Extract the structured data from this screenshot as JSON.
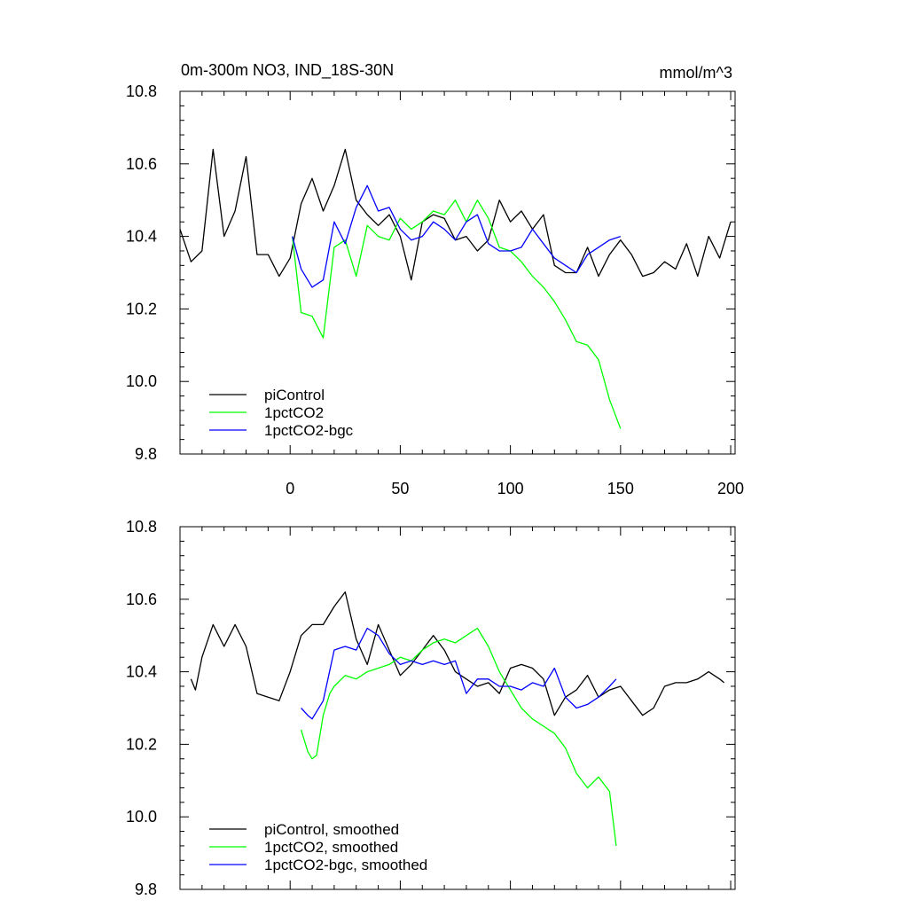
{
  "chart_data": [
    {
      "type": "line",
      "title": "0m-300m NO3, IND_18S-30N",
      "units": "mmol/m^3",
      "xlim": [
        -50,
        202
      ],
      "ylim": [
        9.8,
        10.8
      ],
      "xticks": [
        0,
        50,
        100,
        150,
        200
      ],
      "yticks": [
        9.8,
        10.0,
        10.2,
        10.4,
        10.6,
        10.8
      ],
      "ytick_labels": [
        "9.8",
        "10.0",
        "10.2",
        "10.4",
        "10.6",
        "10.8"
      ],
      "legend_position": "bottom-left",
      "series": [
        {
          "name": "piControl",
          "color": "#000000",
          "x": [
            -50,
            -45,
            -40,
            -35,
            -30,
            -25,
            -20,
            -15,
            -10,
            -5,
            0,
            5,
            10,
            15,
            20,
            25,
            30,
            35,
            40,
            45,
            50,
            55,
            60,
            65,
            70,
            75,
            80,
            85,
            90,
            95,
            100,
            105,
            110,
            115,
            120,
            125,
            130,
            135,
            140,
            145,
            150,
            155,
            160,
            165,
            170,
            175,
            180,
            185,
            190,
            195,
            200
          ],
          "y": [
            10.42,
            10.33,
            10.36,
            10.64,
            10.4,
            10.47,
            10.62,
            10.35,
            10.35,
            10.29,
            10.34,
            10.49,
            10.56,
            10.47,
            10.54,
            10.64,
            10.5,
            10.46,
            10.43,
            10.46,
            10.4,
            10.28,
            10.44,
            10.46,
            10.45,
            10.39,
            10.4,
            10.36,
            10.39,
            10.5,
            10.44,
            10.47,
            10.42,
            10.46,
            10.32,
            10.3,
            10.3,
            10.37,
            10.29,
            10.35,
            10.39,
            10.35,
            10.29,
            10.3,
            10.33,
            10.31,
            10.38,
            10.29,
            10.4,
            10.34,
            10.44
          ]
        },
        {
          "name": "1pctCO2",
          "color": "#00ff00",
          "x": [
            1,
            5,
            10,
            15,
            20,
            25,
            30,
            35,
            40,
            45,
            50,
            55,
            60,
            65,
            70,
            75,
            80,
            85,
            90,
            95,
            100,
            105,
            110,
            115,
            120,
            125,
            130,
            135,
            140,
            145,
            150
          ],
          "y": [
            10.4,
            10.19,
            10.18,
            10.12,
            10.37,
            10.39,
            10.29,
            10.43,
            10.4,
            10.39,
            10.45,
            10.42,
            10.44,
            10.47,
            10.46,
            10.5,
            10.44,
            10.5,
            10.45,
            10.37,
            10.36,
            10.33,
            10.29,
            10.26,
            10.22,
            10.17,
            10.11,
            10.1,
            10.06,
            9.95,
            9.87
          ]
        },
        {
          "name": "1pctCO2-bgc",
          "color": "#0000ff",
          "x": [
            1,
            5,
            10,
            15,
            20,
            25,
            30,
            35,
            40,
            45,
            50,
            55,
            60,
            65,
            70,
            75,
            80,
            85,
            90,
            95,
            100,
            105,
            110,
            115,
            120,
            125,
            130,
            135,
            140,
            145,
            150
          ],
          "y": [
            10.4,
            10.31,
            10.26,
            10.28,
            10.44,
            10.38,
            10.48,
            10.54,
            10.47,
            10.48,
            10.42,
            10.39,
            10.4,
            10.44,
            10.42,
            10.39,
            10.44,
            10.46,
            10.38,
            10.36,
            10.36,
            10.37,
            10.42,
            10.38,
            10.34,
            10.32,
            10.3,
            10.35,
            10.37,
            10.39,
            10.4
          ]
        }
      ]
    },
    {
      "type": "line",
      "xlim": [
        -50,
        202
      ],
      "ylim": [
        9.8,
        10.8
      ],
      "xticks": [
        0,
        50,
        100,
        150,
        200
      ],
      "yticks": [
        9.8,
        10.0,
        10.2,
        10.4,
        10.6,
        10.8
      ],
      "ytick_labels": [
        "9.8",
        "10.0",
        "10.2",
        "10.4",
        "10.6",
        "10.8"
      ],
      "legend_position": "bottom-left",
      "series": [
        {
          "name": "piControl, smoothed",
          "color": "#000000",
          "x": [
            -45,
            -43,
            -40,
            -35,
            -30,
            -25,
            -20,
            -15,
            -10,
            -5,
            0,
            5,
            10,
            15,
            20,
            25,
            30,
            35,
            40,
            45,
            50,
            55,
            60,
            65,
            70,
            75,
            80,
            85,
            90,
            95,
            100,
            105,
            110,
            115,
            120,
            125,
            130,
            135,
            140,
            145,
            150,
            155,
            160,
            165,
            170,
            175,
            180,
            185,
            190,
            195,
            197
          ],
          "y": [
            10.38,
            10.35,
            10.44,
            10.53,
            10.47,
            10.53,
            10.47,
            10.34,
            10.33,
            10.32,
            10.4,
            10.5,
            10.53,
            10.53,
            10.58,
            10.62,
            10.49,
            10.42,
            10.53,
            10.46,
            10.39,
            10.42,
            10.46,
            10.5,
            10.46,
            10.4,
            10.38,
            10.36,
            10.37,
            10.34,
            10.41,
            10.42,
            10.41,
            10.38,
            10.28,
            10.33,
            10.35,
            10.39,
            10.33,
            10.35,
            10.36,
            10.32,
            10.28,
            10.3,
            10.36,
            10.37,
            10.37,
            10.38,
            10.4,
            10.38,
            10.37
          ]
        },
        {
          "name": "1pctCO2, smoothed",
          "color": "#00ff00",
          "x": [
            5,
            8,
            10,
            12,
            15,
            18,
            20,
            25,
            30,
            35,
            40,
            45,
            50,
            55,
            60,
            65,
            70,
            75,
            80,
            85,
            90,
            95,
            100,
            105,
            110,
            115,
            120,
            125,
            130,
            135,
            140,
            145,
            148
          ],
          "y": [
            10.24,
            10.18,
            10.16,
            10.17,
            10.28,
            10.34,
            10.36,
            10.39,
            10.38,
            10.4,
            10.41,
            10.42,
            10.44,
            10.43,
            10.46,
            10.48,
            10.49,
            10.48,
            10.5,
            10.52,
            10.47,
            10.4,
            10.35,
            10.3,
            10.27,
            10.25,
            10.23,
            10.19,
            10.12,
            10.08,
            10.11,
            10.07,
            9.92
          ]
        },
        {
          "name": "1pctCO2-bgc, smoothed",
          "color": "#0000ff",
          "x": [
            5,
            8,
            10,
            15,
            20,
            25,
            30,
            35,
            40,
            45,
            50,
            55,
            60,
            65,
            70,
            75,
            80,
            85,
            90,
            95,
            100,
            105,
            110,
            115,
            120,
            125,
            130,
            135,
            140,
            145,
            148
          ],
          "y": [
            10.3,
            10.28,
            10.27,
            10.32,
            10.46,
            10.47,
            10.46,
            10.52,
            10.5,
            10.45,
            10.42,
            10.43,
            10.42,
            10.43,
            10.42,
            10.43,
            10.34,
            10.38,
            10.38,
            10.36,
            10.36,
            10.35,
            10.37,
            10.36,
            10.41,
            10.33,
            10.3,
            10.31,
            10.33,
            10.36,
            10.38
          ]
        }
      ]
    }
  ]
}
